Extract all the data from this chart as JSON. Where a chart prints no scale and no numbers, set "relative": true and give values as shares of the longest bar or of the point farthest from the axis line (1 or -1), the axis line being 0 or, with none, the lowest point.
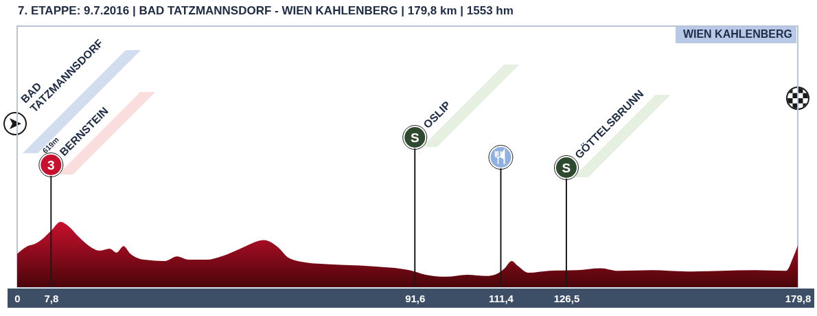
{
  "chart_data": {
    "type": "area",
    "title": "7. ETAPPE: 9.7.2016 | BAD TATZMANNSDORF - WIEN KAHLENBERG | 179,8 km | 1553 hm",
    "relative": true,
    "color": "#c8102e",
    "x": [
      0,
      2.4,
      4,
      5.5,
      7.9,
      10,
      11.9,
      14.2,
      16.6,
      19,
      21.3,
      22.9,
      24.5,
      26.1,
      29.3,
      34,
      36.8,
      39.5,
      43.5,
      47.4,
      51.4,
      56.9,
      60.1,
      62.5,
      66.4,
      72,
      81.4,
      90.3,
      94.1,
      98.8,
      103.6,
      108.3,
      110.7,
      112.3,
      113.9,
      115.4,
      117.8,
      122.5,
      128.9,
      134.4,
      138.4,
      146.3,
      154.2,
      162.1,
      170,
      177.1,
      178.7,
      179.8
    ],
    "values": [
      0.51,
      0.63,
      0.66,
      0.72,
      0.87,
      1,
      0.93,
      0.77,
      0.63,
      0.56,
      0.59,
      0.53,
      0.63,
      0.51,
      0.42,
      0.4,
      0.47,
      0.42,
      0.42,
      0.48,
      0.59,
      0.72,
      0.61,
      0.45,
      0.38,
      0.35,
      0.32,
      0.26,
      0.19,
      0.16,
      0.19,
      0.17,
      0.21,
      0.29,
      0.4,
      0.32,
      0.22,
      0.25,
      0.26,
      0.29,
      0.25,
      0.26,
      0.24,
      0.25,
      0.26,
      0.25,
      0.45,
      0.64
    ],
    "xlim": [
      0,
      179.8
    ],
    "xticks": [
      0,
      {
        "value": 7.8,
        "label": "7,8"
      },
      {
        "value": 91.6,
        "label": "91,6"
      },
      {
        "value": 111.4,
        "label": "111,4"
      },
      {
        "value": 126.5,
        "label": "126,5"
      },
      {
        "value": 179.8,
        "label": "179,8"
      }
    ],
    "ref_lines": [
      {
        "axis": "x",
        "value": 7.8,
        "label": "BERNSTEIN",
        "color": "#1a1a1a"
      },
      {
        "axis": "x",
        "value": 91.6,
        "label": "OSLIP",
        "color": "#1a1a1a"
      },
      {
        "axis": "x",
        "value": 111.4,
        "label": null,
        "color": "#1a1a1a"
      },
      {
        "axis": "x",
        "value": 126.5,
        "label": "GÖTTELSBRUNN",
        "color": "#1a1a1a"
      }
    ],
    "annotations": [
      "BAD TATZMANNSDORF",
      "619m",
      "3",
      "S",
      "S",
      "WIEN KAHLENBERG"
    ]
  }
}
